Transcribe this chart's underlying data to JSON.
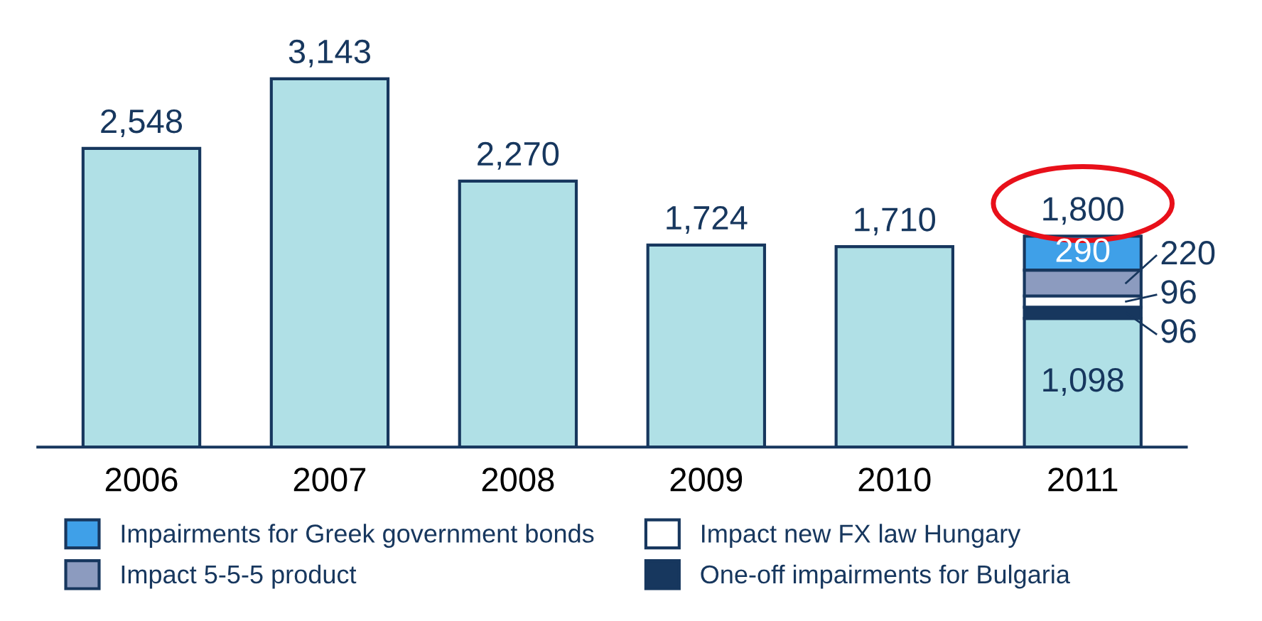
{
  "chart_data": {
    "type": "bar",
    "stacked": true,
    "categories": [
      "2006",
      "2007",
      "2008",
      "2009",
      "2010",
      "2011"
    ],
    "series": [
      {
        "color": "#b0e0e6",
        "values": [
          2548,
          3143,
          2270,
          1724,
          1710,
          1098
        ],
        "value_labels": [
          null,
          null,
          null,
          null,
          null,
          "1,098"
        ]
      },
      {
        "name": "One-off impairments for Bulgaria",
        "color": "#17375e",
        "values": [
          null,
          null,
          null,
          null,
          null,
          96
        ],
        "value_labels": [
          null,
          null,
          null,
          null,
          null,
          "96"
        ]
      },
      {
        "name": "Impact new FX law Hungary",
        "color": "#ffffff",
        "values": [
          null,
          null,
          null,
          null,
          null,
          96
        ],
        "value_labels": [
          null,
          null,
          null,
          null,
          null,
          "96"
        ]
      },
      {
        "name": "Impact 5-5-5 product",
        "color": "#8c9bbf",
        "values": [
          null,
          null,
          null,
          null,
          null,
          220
        ],
        "value_labels": [
          null,
          null,
          null,
          null,
          null,
          "220"
        ]
      },
      {
        "name": "Impairments for Greek government bonds",
        "color": "#3fa0e8",
        "values": [
          null,
          null,
          null,
          null,
          null,
          290
        ],
        "value_labels": [
          null,
          null,
          null,
          null,
          null,
          "290"
        ]
      }
    ],
    "totals": [
      "2,548",
      "3,143",
      "2,270",
      "1,724",
      "1,710",
      "1,800"
    ],
    "legend": "bottom",
    "grid": false,
    "tick_labels": "x"
  }
}
